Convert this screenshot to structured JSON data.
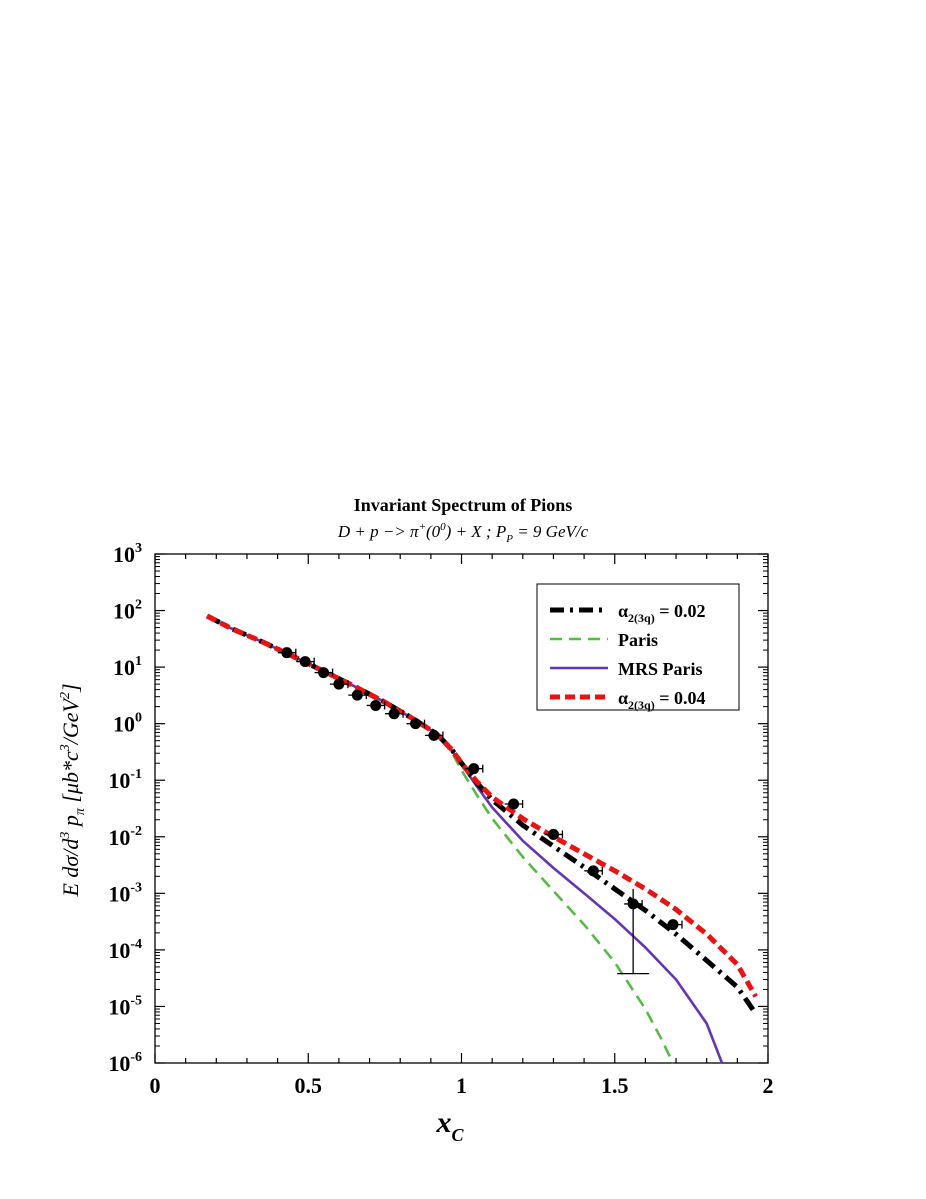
{
  "chart_data": {
    "type": "line",
    "title": "Invariant Spectrum of Pions",
    "subtitle_parts": {
      "reaction_lead": "D + p −> π",
      "reaction_sup": "+",
      "reaction_mid": "(0",
      "reaction_sup2": "0",
      "reaction_tail": ") + X ;  P",
      "momentum_sub": "P",
      "momentum_tail": " = 9 GeV/c"
    },
    "xlabel": {
      "main": "x",
      "sub": "C"
    },
    "ylabel_parts": {
      "a": "E dσ/d",
      "b_sup": "3",
      "c": " p",
      "d_sub": "π",
      "e": " [μb*c",
      "f_sup": "3",
      "g": "/GeV",
      "h_sup": "2",
      "i": "]"
    },
    "xlim": [
      0,
      2
    ],
    "ylim_log10": [
      -6,
      3
    ],
    "y_scale": "log",
    "grid": false,
    "x_ticks": [
      {
        "v": 0,
        "label": "0"
      },
      {
        "v": 0.5,
        "label": "0.5"
      },
      {
        "v": 1,
        "label": "1"
      },
      {
        "v": 1.5,
        "label": "1.5"
      },
      {
        "v": 2,
        "label": "2"
      }
    ],
    "y_ticks": [
      {
        "exp": 3,
        "base": "10",
        "sup": "3"
      },
      {
        "exp": 2,
        "base": "10",
        "sup": "2"
      },
      {
        "exp": 1,
        "base": "10",
        "sup": "1"
      },
      {
        "exp": 0,
        "base": "10",
        "sup": "0"
      },
      {
        "exp": -1,
        "base": "10",
        "sup": "-1"
      },
      {
        "exp": -2,
        "base": "10",
        "sup": "-2"
      },
      {
        "exp": -3,
        "base": "10",
        "sup": "-3"
      },
      {
        "exp": -4,
        "base": "10",
        "sup": "-4"
      },
      {
        "exp": -5,
        "base": "10",
        "sup": "-5"
      },
      {
        "exp": -6,
        "base": "10",
        "sup": "-6"
      }
    ],
    "legend_position": "top-right",
    "series": [
      {
        "id": "black",
        "legend": {
          "main": "α",
          "sub": "2(3q)",
          "tail": " = 0.02"
        },
        "color": "#000000",
        "style": "dash-dot",
        "x": [
          0.17,
          0.25,
          0.35,
          0.45,
          0.55,
          0.65,
          0.75,
          0.85,
          0.92,
          0.97,
          1.0,
          1.05,
          1.1,
          1.2,
          1.3,
          1.4,
          1.5,
          1.6,
          1.7,
          1.8,
          1.9,
          1.96
        ],
        "y": [
          80,
          48,
          28,
          15.5,
          8.5,
          4.6,
          2.4,
          1.15,
          0.65,
          0.34,
          0.2,
          0.09,
          0.045,
          0.016,
          0.0068,
          0.0029,
          0.0012,
          0.0005,
          0.00019,
          6.5e-05,
          2.2e-05,
          7.5e-06
        ]
      },
      {
        "id": "green",
        "legend": {
          "main": "Paris"
        },
        "color": "#55bb44",
        "style": "dash",
        "x": [
          0.17,
          0.25,
          0.35,
          0.45,
          0.55,
          0.65,
          0.75,
          0.85,
          0.92,
          0.97,
          1.0,
          1.05,
          1.1,
          1.2,
          1.3,
          1.4,
          1.5,
          1.6,
          1.65,
          1.69
        ],
        "y": [
          80,
          48,
          28,
          15.5,
          8.5,
          4.6,
          2.4,
          1.15,
          0.65,
          0.3,
          0.15,
          0.055,
          0.021,
          0.0044,
          0.0011,
          0.00028,
          6e-05,
          9e-06,
          2.8e-06,
          1e-06
        ]
      },
      {
        "id": "purple",
        "legend": {
          "main": "MRS Paris"
        },
        "color": "#6633bb",
        "style": "solid",
        "x": [
          0.17,
          0.25,
          0.35,
          0.45,
          0.55,
          0.65,
          0.75,
          0.85,
          0.92,
          0.97,
          1.0,
          1.05,
          1.1,
          1.2,
          1.3,
          1.4,
          1.5,
          1.6,
          1.7,
          1.8,
          1.85
        ],
        "y": [
          80,
          48,
          28,
          15.5,
          8.5,
          4.6,
          2.4,
          1.15,
          0.65,
          0.33,
          0.19,
          0.078,
          0.033,
          0.0085,
          0.0028,
          0.001,
          0.00035,
          0.00011,
          3e-05,
          5e-06,
          1e-06
        ]
      },
      {
        "id": "red",
        "legend": {
          "main": "α",
          "sub": "2(3q)",
          "tail": " = 0.04"
        },
        "color": "#ee1111",
        "style": "dash-bold",
        "x": [
          0.17,
          0.25,
          0.35,
          0.45,
          0.55,
          0.65,
          0.75,
          0.85,
          0.92,
          0.97,
          1.0,
          1.05,
          1.1,
          1.2,
          1.3,
          1.4,
          1.5,
          1.6,
          1.7,
          1.8,
          1.9,
          1.96
        ],
        "y": [
          80,
          48,
          28,
          15.5,
          8.5,
          4.6,
          2.4,
          1.15,
          0.65,
          0.34,
          0.2,
          0.095,
          0.05,
          0.021,
          0.01,
          0.005,
          0.0025,
          0.0012,
          0.00052,
          0.00019,
          5.5e-05,
          1.5e-05
        ]
      }
    ],
    "data_points": {
      "name": "experimental data",
      "x": [
        0.43,
        0.49,
        0.55,
        0.6,
        0.66,
        0.72,
        0.78,
        0.85,
        0.91,
        1.04,
        1.17,
        1.3,
        1.43,
        1.56,
        1.69
      ],
      "y": [
        18,
        12.5,
        8,
        5,
        3.2,
        2.1,
        1.5,
        1.0,
        0.62,
        0.16,
        0.038,
        0.011,
        0.0025,
        0.00065,
        0.00028
      ],
      "yerr_low": [
        null,
        null,
        null,
        null,
        null,
        null,
        null,
        null,
        null,
        null,
        null,
        null,
        null,
        3.8e-05,
        null
      ],
      "yerr_high": [
        null,
        null,
        null,
        null,
        null,
        null,
        null,
        null,
        null,
        null,
        null,
        null,
        null,
        0.0012,
        null
      ]
    }
  }
}
